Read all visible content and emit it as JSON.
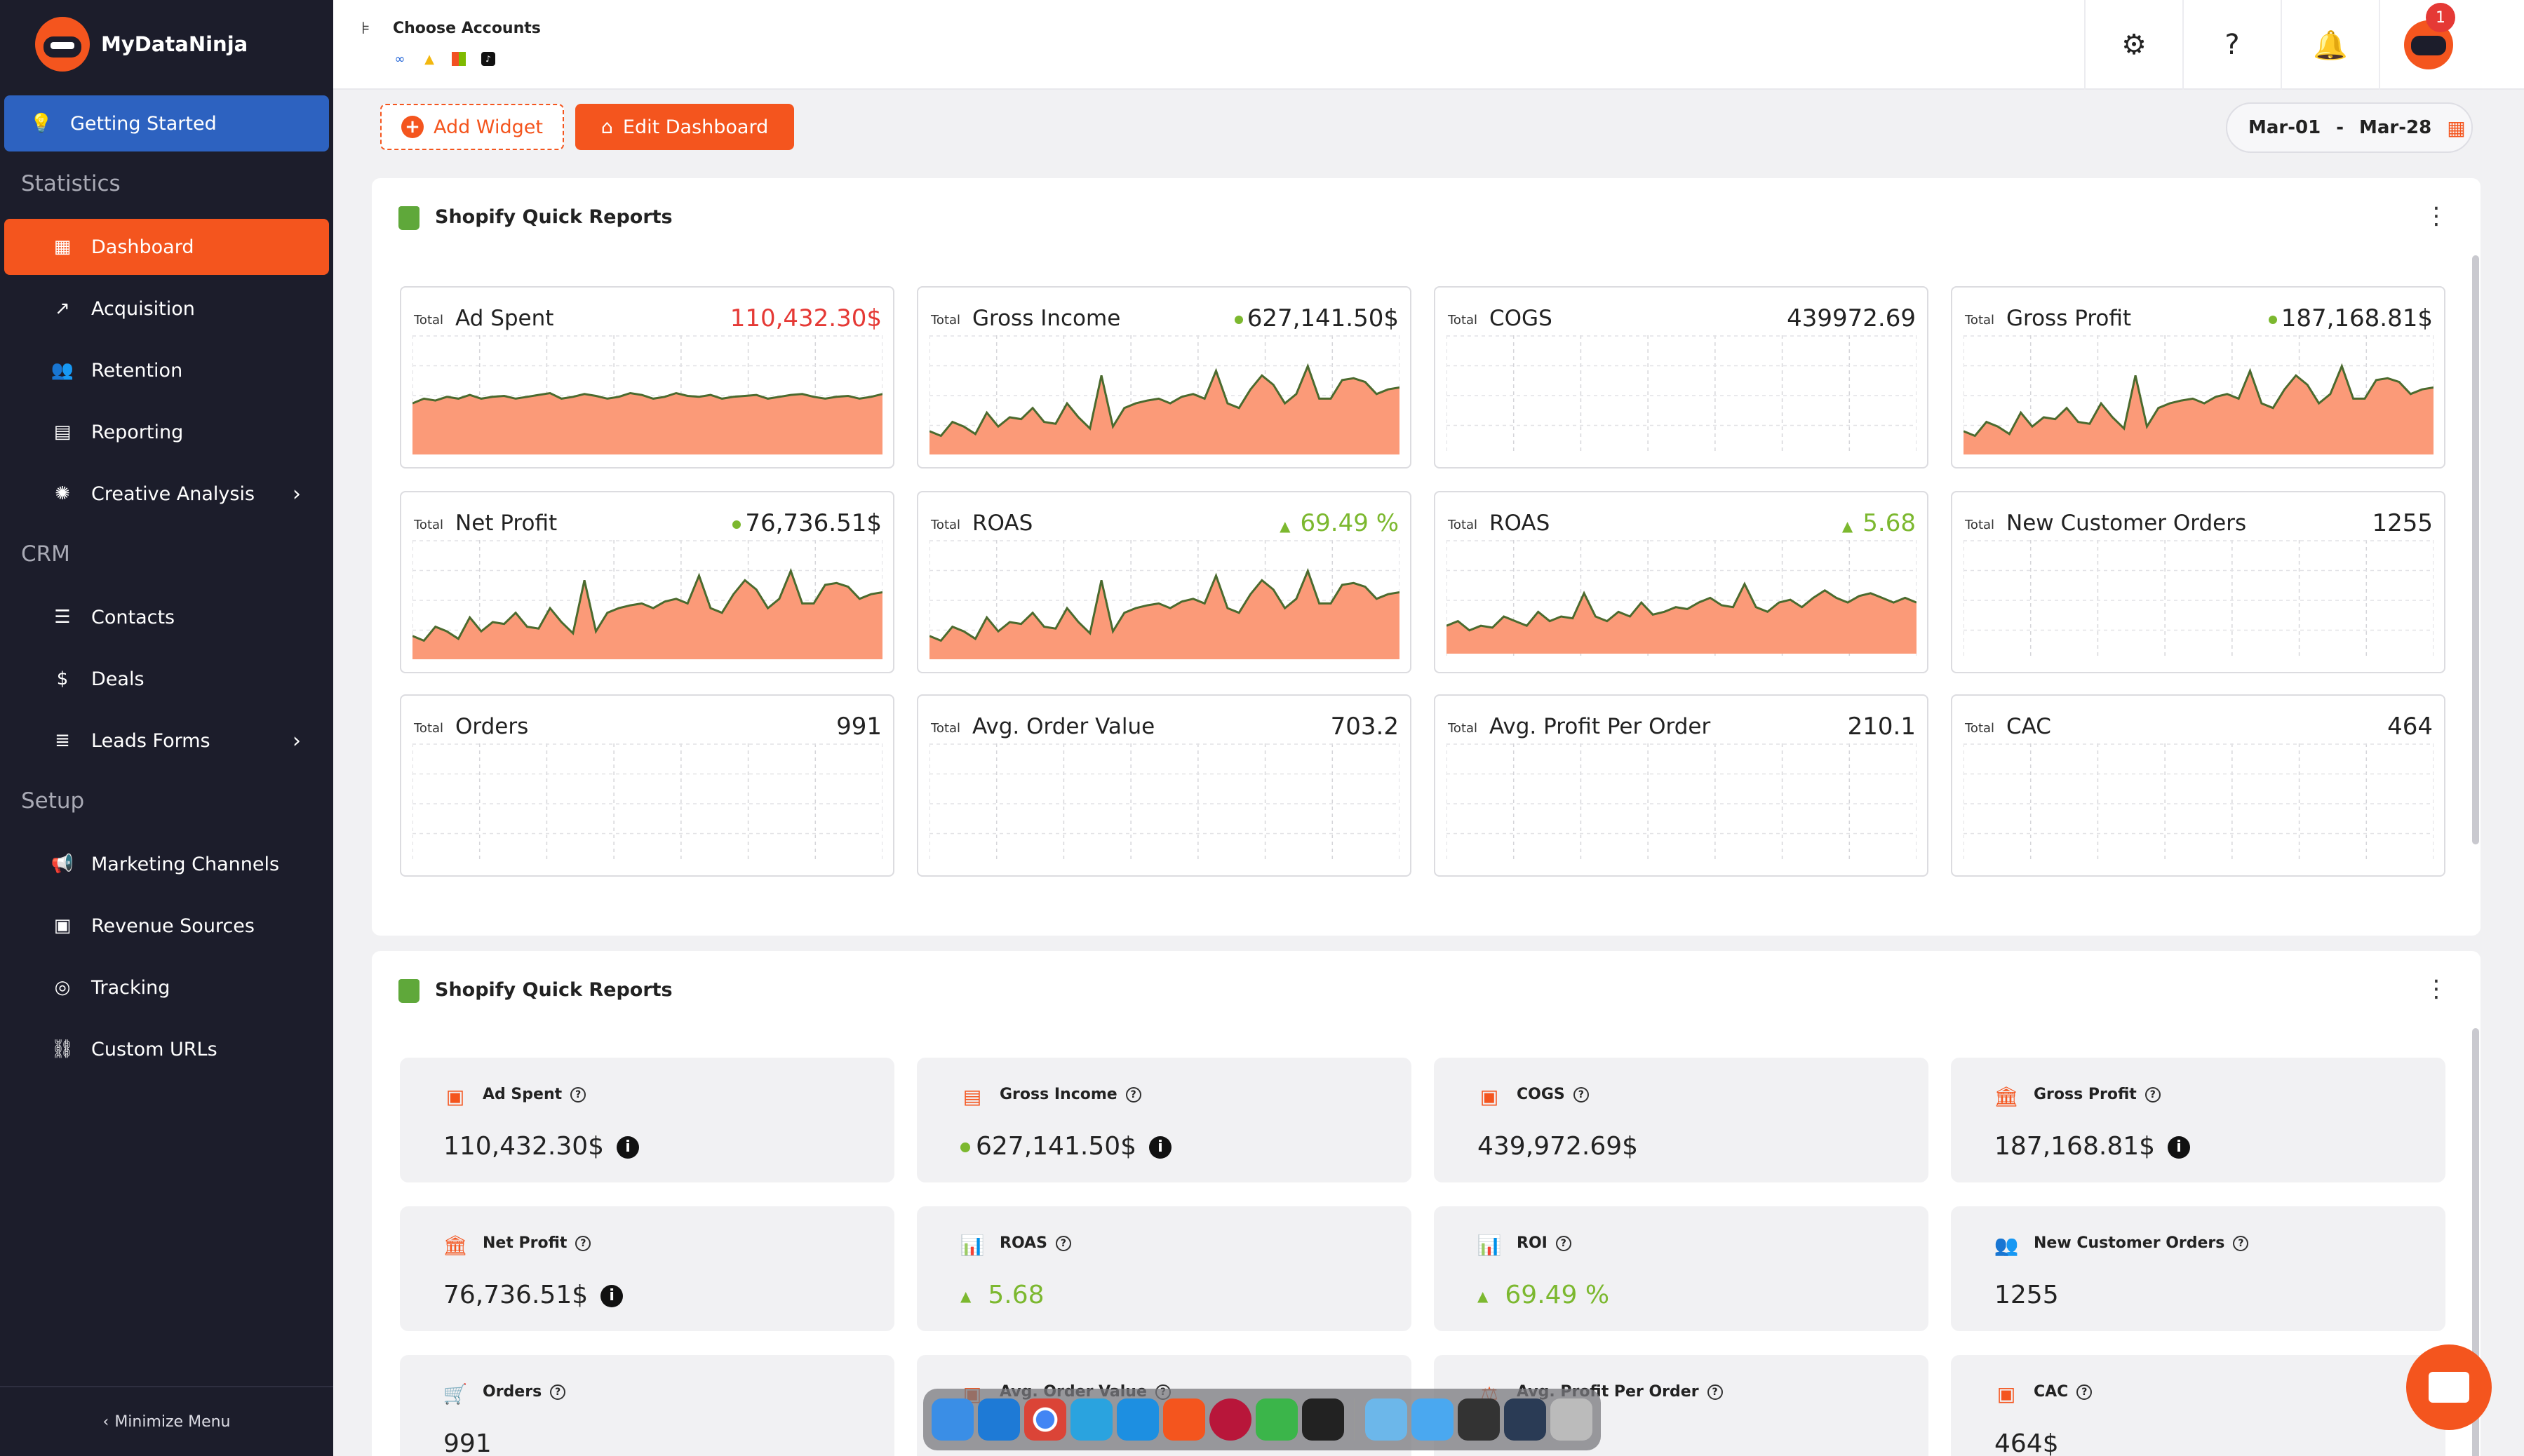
{
  "brand": {
    "name": "MyDataNinja"
  },
  "sidebar": {
    "getting_started": "Getting Started",
    "section_statistics": "Statistics",
    "section_crm": "CRM",
    "section_setup": "Setup",
    "items": [
      {
        "label": "Dashboard",
        "icon": "grid-icon"
      },
      {
        "label": "Acquisition",
        "icon": "trend-icon"
      },
      {
        "label": "Retention",
        "icon": "users-icon"
      },
      {
        "label": "Reporting",
        "icon": "report-icon"
      },
      {
        "label": "Creative Analysis",
        "icon": "aperture-icon"
      },
      {
        "label": "Contacts",
        "icon": "contacts-icon"
      },
      {
        "label": "Deals",
        "icon": "dollar-icon"
      },
      {
        "label": "Leads Forms",
        "icon": "form-icon"
      },
      {
        "label": "Marketing Channels",
        "icon": "megaphone-icon"
      },
      {
        "label": "Revenue Sources",
        "icon": "money-icon"
      },
      {
        "label": "Tracking",
        "icon": "tracking-icon"
      },
      {
        "label": "Custom URLs",
        "icon": "link-icon"
      }
    ],
    "minimize": "Minimize Menu"
  },
  "header": {
    "choose_accounts": "Choose Accounts",
    "notification_count": "1"
  },
  "toolbar": {
    "add_widget": "Add Widget",
    "edit_dashboard": "Edit Dashboard",
    "date_from": "Mar-01",
    "date_sep": "-",
    "date_to": "Mar-28"
  },
  "panel1": {
    "title": "Shopify Quick Reports",
    "total_label": "Total",
    "cards": [
      {
        "label": "Ad Spent",
        "value": "110,432.30$"
      },
      {
        "label": "Gross Income",
        "value": "627,141.50$"
      },
      {
        "label": "COGS",
        "value": "439972.69"
      },
      {
        "label": "Gross Profit",
        "value": "187,168.81$"
      },
      {
        "label": "Net Profit",
        "value": "76,736.51$"
      },
      {
        "label": "ROAS",
        "value": "69.49 %"
      },
      {
        "label": "ROAS",
        "value": "5.68"
      },
      {
        "label": "New Customer Orders",
        "value": "1255"
      },
      {
        "label": "Orders",
        "value": "991"
      },
      {
        "label": "Avg. Order Value",
        "value": "703.2"
      },
      {
        "label": "Avg. Profit Per Order",
        "value": "210.1"
      },
      {
        "label": "CAC",
        "value": "464"
      }
    ]
  },
  "panel2": {
    "title": "Shopify Quick Reports",
    "cards": [
      {
        "label": "Ad Spent",
        "value": "110,432.30$"
      },
      {
        "label": "Gross Income",
        "value": "627,141.50$"
      },
      {
        "label": "COGS",
        "value": "439,972.69$"
      },
      {
        "label": "Gross Profit",
        "value": "187,168.81$"
      },
      {
        "label": "Net Profit",
        "value": "76,736.51$"
      },
      {
        "label": "ROAS",
        "value": "5.68"
      },
      {
        "label": "ROI",
        "value": "69.49 %"
      },
      {
        "label": "New Customer Orders",
        "value": "1255"
      },
      {
        "label": "Orders",
        "value": "991"
      },
      {
        "label": "Avg. Order Value",
        "value": ""
      },
      {
        "label": "Avg. Profit Per Order",
        "value": ""
      },
      {
        "label": "CAC",
        "value": "464$"
      }
    ]
  },
  "colors": {
    "accent": "#f4551e",
    "sidebar": "#1c1d2b",
    "active_blue": "#2d62c0",
    "positive": "#7cb82f",
    "negative": "#e53935",
    "area_fill": "#fb9a78"
  }
}
